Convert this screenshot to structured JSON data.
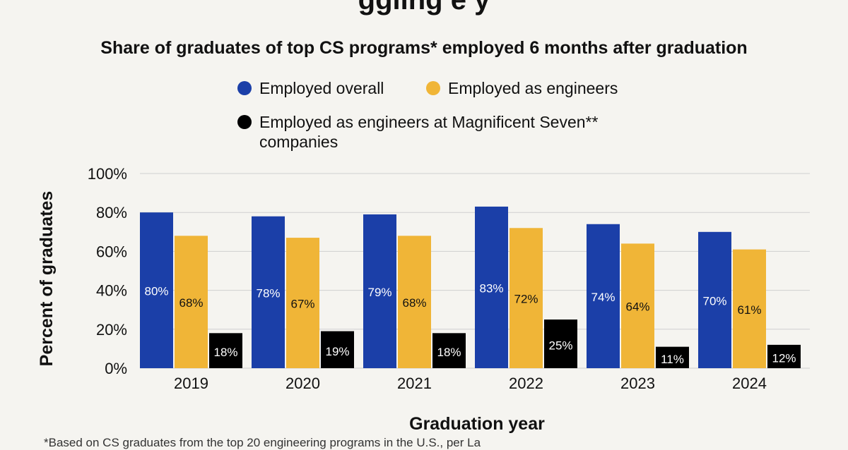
{
  "header_clip_text": "ggling e   y",
  "footnote": "*Based on CS graduates from the top 20 engineering programs in the U.S., per La",
  "colors": {
    "employed_overall": "#1b3fa8",
    "employed_engineers": "#f0b537",
    "employed_mag7": "#000000",
    "grid": "#cfcfcf",
    "background": "#f5f4f0"
  },
  "chart_data": {
    "type": "bar",
    "title": "Share of graduates of top CS programs* employed 6 months after graduation",
    "xlabel": "Graduation year",
    "ylabel": "Percent of graduates",
    "ylim": [
      0,
      100
    ],
    "yticks": [
      "0%",
      "20%",
      "40%",
      "60%",
      "80%",
      "100%"
    ],
    "grid": true,
    "legend_position": "top",
    "categories": [
      "2019",
      "2020",
      "2021",
      "2022",
      "2023",
      "2024"
    ],
    "series": [
      {
        "name": "Employed overall",
        "values": [
          80,
          78,
          79,
          83,
          74,
          70
        ],
        "labels": [
          "80%",
          "78%",
          "79%",
          "83%",
          "74%",
          "70%"
        ]
      },
      {
        "name": "Employed as engineers",
        "values": [
          68,
          67,
          68,
          72,
          64,
          61
        ],
        "labels": [
          "68%",
          "67%",
          "68%",
          "72%",
          "64%",
          "61%"
        ]
      },
      {
        "name": "Employed as engineers at Magnificent Seven** companies",
        "values": [
          18,
          19,
          18,
          25,
          11,
          12
        ],
        "labels": [
          "18%",
          "19%",
          "18%",
          "25%",
          "11%",
          "12%"
        ]
      }
    ]
  }
}
